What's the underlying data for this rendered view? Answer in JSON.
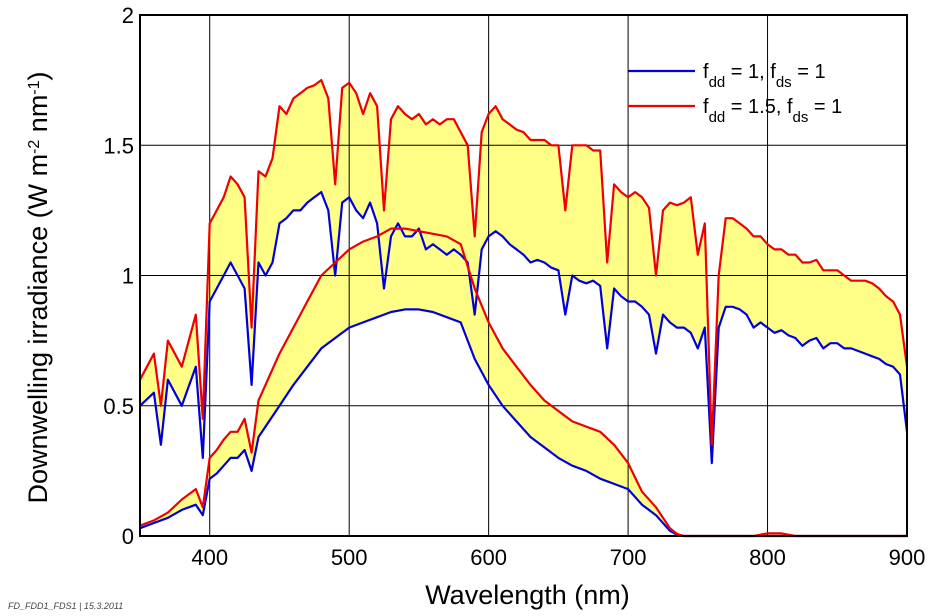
{
  "chart_data": {
    "type": "line",
    "title": "",
    "xlabel": "Wavelength (nm)",
    "ylabel_parts": [
      "Downwelling irradiance (W m",
      "-2",
      " nm",
      "-1",
      ")"
    ],
    "xlim": [
      350,
      900
    ],
    "ylim": [
      0,
      2
    ],
    "xticks": [
      400,
      500,
      600,
      700,
      800,
      900
    ],
    "yticks": [
      0,
      0.5,
      1,
      1.5,
      2
    ],
    "ytick_labels": [
      "0",
      "0.5",
      "1",
      "1.5",
      "2"
    ],
    "grid": true,
    "legend_position": "top-right",
    "fill_color": "#ffff88",
    "series": [
      {
        "legend_parts": [
          "f",
          "dd",
          " = 1, f",
          "ds",
          " = 1"
        ],
        "color": "#0000dd",
        "curves": [
          {
            "x": [
              350,
              360,
              365,
              370,
              380,
              390,
              395,
              400,
              405,
              410,
              415,
              420,
              425,
              430,
              435,
              440,
              445,
              450,
              455,
              460,
              465,
              470,
              475,
              480,
              485,
              490,
              495,
              500,
              505,
              510,
              515,
              520,
              525,
              530,
              535,
              540,
              545,
              550,
              555,
              560,
              565,
              570,
              575,
              580,
              585,
              590,
              595,
              600,
              605,
              610,
              615,
              620,
              625,
              630,
              635,
              640,
              645,
              650,
              655,
              660,
              665,
              670,
              675,
              680,
              685,
              690,
              695,
              700,
              705,
              710,
              715,
              720,
              725,
              730,
              735,
              740,
              745,
              750,
              755,
              760,
              765,
              770,
              775,
              780,
              785,
              790,
              795,
              800,
              805,
              810,
              815,
              820,
              825,
              830,
              835,
              840,
              845,
              850,
              855,
              860,
              865,
              870,
              875,
              880,
              885,
              890,
              895,
              900
            ],
            "y": [
              0.5,
              0.55,
              0.35,
              0.6,
              0.5,
              0.65,
              0.3,
              0.9,
              0.95,
              1.0,
              1.05,
              1.0,
              0.95,
              0.58,
              1.05,
              1.0,
              1.05,
              1.2,
              1.22,
              1.25,
              1.25,
              1.28,
              1.3,
              1.32,
              1.25,
              1.0,
              1.28,
              1.3,
              1.25,
              1.22,
              1.28,
              1.2,
              0.95,
              1.15,
              1.2,
              1.15,
              1.15,
              1.18,
              1.1,
              1.12,
              1.1,
              1.08,
              1.1,
              1.08,
              1.05,
              0.85,
              1.1,
              1.15,
              1.17,
              1.15,
              1.12,
              1.1,
              1.08,
              1.05,
              1.06,
              1.05,
              1.03,
              1.02,
              0.85,
              1.0,
              0.98,
              0.97,
              0.98,
              0.96,
              0.72,
              0.95,
              0.92,
              0.9,
              0.9,
              0.88,
              0.85,
              0.7,
              0.85,
              0.82,
              0.8,
              0.8,
              0.78,
              0.72,
              0.8,
              0.28,
              0.8,
              0.88,
              0.88,
              0.87,
              0.85,
              0.8,
              0.82,
              0.8,
              0.78,
              0.79,
              0.77,
              0.76,
              0.73,
              0.75,
              0.76,
              0.72,
              0.74,
              0.74,
              0.72,
              0.72,
              0.71,
              0.7,
              0.69,
              0.68,
              0.66,
              0.65,
              0.62,
              0.4
            ]
          },
          {
            "x": [
              350,
              360,
              370,
              380,
              390,
              395,
              400,
              405,
              410,
              415,
              420,
              425,
              430,
              435,
              440,
              450,
              460,
              470,
              480,
              490,
              500,
              510,
              520,
              530,
              540,
              550,
              560,
              570,
              580,
              590,
              600,
              610,
              620,
              630,
              640,
              650,
              660,
              670,
              680,
              690,
              700,
              710,
              720,
              730,
              735,
              740,
              750,
              760,
              770,
              780,
              790,
              800,
              810,
              820,
              830,
              900
            ],
            "y": [
              0.03,
              0.05,
              0.07,
              0.1,
              0.12,
              0.08,
              0.22,
              0.24,
              0.27,
              0.3,
              0.3,
              0.33,
              0.25,
              0.38,
              0.42,
              0.5,
              0.58,
              0.65,
              0.72,
              0.76,
              0.8,
              0.82,
              0.84,
              0.86,
              0.87,
              0.87,
              0.86,
              0.84,
              0.82,
              0.68,
              0.58,
              0.5,
              0.44,
              0.38,
              0.34,
              0.3,
              0.27,
              0.25,
              0.22,
              0.2,
              0.18,
              0.12,
              0.08,
              0.02,
              0.005,
              0.0,
              0.0,
              0.0,
              0.0,
              0.0,
              0.0,
              0.0,
              0.0,
              0.0,
              0.0,
              0.0
            ]
          }
        ]
      },
      {
        "legend_parts": [
          "f",
          "dd",
          " = 1.5, f",
          "ds",
          " = 1"
        ],
        "color": "#ee0000",
        "curves": [
          {
            "x": [
              350,
              360,
              365,
              370,
              380,
              390,
              395,
              400,
              405,
              410,
              415,
              420,
              425,
              430,
              435,
              440,
              445,
              450,
              455,
              460,
              465,
              470,
              475,
              480,
              485,
              490,
              495,
              500,
              505,
              510,
              515,
              520,
              525,
              530,
              535,
              540,
              545,
              550,
              555,
              560,
              565,
              570,
              575,
              580,
              585,
              590,
              595,
              600,
              605,
              610,
              615,
              620,
              625,
              630,
              635,
              640,
              645,
              650,
              655,
              660,
              665,
              670,
              675,
              680,
              685,
              690,
              695,
              700,
              705,
              710,
              715,
              720,
              725,
              730,
              735,
              740,
              745,
              750,
              755,
              760,
              765,
              770,
              775,
              780,
              785,
              790,
              795,
              800,
              805,
              810,
              815,
              820,
              825,
              830,
              835,
              840,
              845,
              850,
              855,
              860,
              865,
              870,
              875,
              880,
              885,
              890,
              895,
              900
            ],
            "y": [
              0.6,
              0.7,
              0.5,
              0.75,
              0.65,
              0.85,
              0.45,
              1.2,
              1.25,
              1.3,
              1.38,
              1.35,
              1.3,
              0.8,
              1.4,
              1.38,
              1.45,
              1.65,
              1.62,
              1.68,
              1.7,
              1.72,
              1.73,
              1.75,
              1.68,
              1.35,
              1.72,
              1.74,
              1.7,
              1.62,
              1.7,
              1.65,
              1.25,
              1.6,
              1.65,
              1.62,
              1.6,
              1.62,
              1.58,
              1.6,
              1.58,
              1.6,
              1.6,
              1.55,
              1.5,
              1.15,
              1.55,
              1.62,
              1.65,
              1.6,
              1.58,
              1.56,
              1.55,
              1.52,
              1.52,
              1.52,
              1.5,
              1.5,
              1.25,
              1.5,
              1.5,
              1.5,
              1.48,
              1.48,
              1.05,
              1.35,
              1.32,
              1.3,
              1.32,
              1.3,
              1.26,
              1.0,
              1.25,
              1.28,
              1.27,
              1.28,
              1.3,
              1.08,
              1.2,
              0.35,
              1.0,
              1.22,
              1.22,
              1.2,
              1.18,
              1.15,
              1.15,
              1.12,
              1.1,
              1.1,
              1.08,
              1.08,
              1.05,
              1.05,
              1.06,
              1.02,
              1.02,
              1.02,
              1.0,
              0.98,
              0.98,
              0.98,
              0.97,
              0.95,
              0.92,
              0.9,
              0.85,
              0.65
            ]
          },
          {
            "x": [
              350,
              360,
              370,
              380,
              390,
              395,
              400,
              405,
              410,
              415,
              420,
              425,
              430,
              435,
              440,
              450,
              460,
              470,
              480,
              490,
              500,
              510,
              520,
              530,
              540,
              550,
              560,
              570,
              580,
              590,
              600,
              610,
              620,
              630,
              640,
              650,
              660,
              670,
              680,
              690,
              700,
              710,
              720,
              730,
              735,
              740,
              750,
              760,
              770,
              780,
              790,
              800,
              810,
              820,
              830,
              900
            ],
            "y": [
              0.04,
              0.06,
              0.09,
              0.14,
              0.18,
              0.11,
              0.3,
              0.33,
              0.37,
              0.4,
              0.4,
              0.45,
              0.32,
              0.52,
              0.58,
              0.7,
              0.8,
              0.9,
              1.0,
              1.05,
              1.1,
              1.13,
              1.15,
              1.18,
              1.18,
              1.17,
              1.16,
              1.15,
              1.12,
              0.95,
              0.82,
              0.72,
              0.65,
              0.58,
              0.52,
              0.48,
              0.44,
              0.42,
              0.4,
              0.35,
              0.28,
              0.17,
              0.11,
              0.03,
              0.008,
              0.0,
              0.0,
              0.0,
              0.0,
              0.0,
              0.0,
              0.01,
              0.01,
              0.0,
              0.0,
              0.0
            ]
          }
        ]
      }
    ]
  },
  "footnote": "FD_FDD1_FDS1 | 15.3.2011"
}
